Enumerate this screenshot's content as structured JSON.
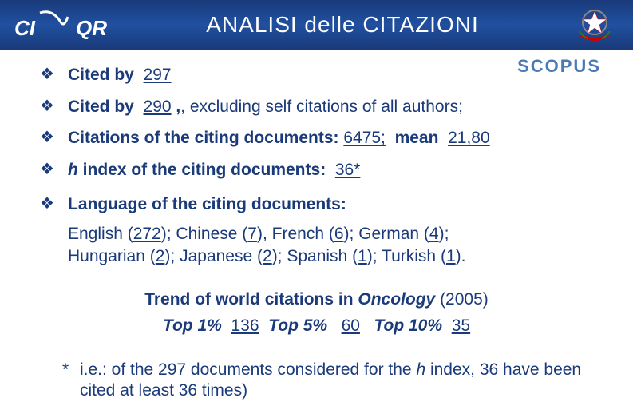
{
  "header": {
    "logo_text": "CIVR QR",
    "title": "ANALISI delle CITAZIONI"
  },
  "scopus": {
    "text": "SCOPUS"
  },
  "bullets": {
    "b1_label": "Cited by",
    "b1_value": "297",
    "b2_label": "Cited by",
    "b2_value": "290",
    "b2_suffix": ", excluding self citations of all authors;",
    "b3_label": "Citations of the citing documents",
    "b3_value": "6475;",
    "b3_mean_label": "mean",
    "b3_mean_value": "21,80",
    "b4_label_prefix_italic": "h",
    "b4_label_rest": " index of the citing documents",
    "b4_value": "36*"
  },
  "languages": {
    "heading": "Language of the citing documents",
    "items": [
      {
        "name": "English",
        "count": "272",
        "sep": "; "
      },
      {
        "name": "Chinese",
        "count": "7",
        "sep": ", "
      },
      {
        "name": "French",
        "count": "6",
        "sep": "; "
      },
      {
        "name": "German",
        "count": "4",
        "sep": "; "
      },
      {
        "name": "Hungarian",
        "count": "2",
        "sep": "; "
      },
      {
        "name": "Japanese",
        "count": "2",
        "sep": "; "
      },
      {
        "name": "Spanish",
        "count": "1",
        "sep": "; "
      },
      {
        "name": "Turkish",
        "count": "1",
        "sep": "."
      }
    ]
  },
  "trend": {
    "line1_prefix": "Trend of world citations  in ",
    "line1_italic": "Oncology",
    "line1_suffix": " (2005)",
    "top1_label": "Top 1%",
    "top1_value": "136",
    "top5_label": "Top 5%",
    "top5_value": "60",
    "top10_label": "Top 10%",
    "top10_value": "35"
  },
  "footnote": {
    "text_prefix": "i.e.: of the 297 documents considered for the ",
    "text_italic": "h",
    "text_suffix": " index, 36 have been cited at least 36 times)"
  },
  "colors": {
    "header_bg_top": "#1a3a7a",
    "header_bg_mid": "#2050a0",
    "text_main": "#1a3a7a",
    "scopus": "#4a7ab5"
  }
}
